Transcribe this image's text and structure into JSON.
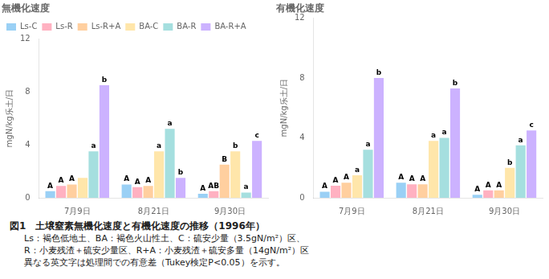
{
  "chart_data": [
    {
      "type": "bar",
      "title": "無機化速度",
      "y_label": "mgN/kg乐土/日",
      "categories": [
        "7月9日",
        "8月21日",
        "9月30日"
      ],
      "series": [
        {
          "name": "Ls-C",
          "values": [
            0.5,
            1.0,
            0.3
          ],
          "annotations": [
            "A",
            "A",
            "A"
          ]
        },
        {
          "name": "Ls-R",
          "values": [
            0.9,
            0.8,
            0.5
          ],
          "annotations": [
            "A",
            "A",
            "AB"
          ]
        },
        {
          "name": "Ls-R+A",
          "values": [
            1.0,
            0.9,
            2.5
          ],
          "annotations": [
            "A",
            "A",
            "B"
          ]
        },
        {
          "name": "BA-C",
          "values": [
            1.5,
            3.5,
            3.5
          ],
          "annotations": [
            null,
            "a",
            "b"
          ]
        },
        {
          "name": "BA-R",
          "values": [
            3.5,
            5.2,
            0.4
          ],
          "annotations": [
            "a",
            "a",
            "a"
          ]
        },
        {
          "name": "BA-R+A",
          "values": [
            8.5,
            1.5,
            4.3
          ],
          "annotations": [
            "b",
            "b",
            "c"
          ]
        }
      ],
      "ylim": [
        0,
        12
      ],
      "yticks": [
        0,
        4,
        8,
        12
      ],
      "grid": false,
      "legend": "upper left"
    },
    {
      "type": "bar",
      "title": "有機化速度",
      "y_label": "mgN/kg乐土/日",
      "categories": [
        "7月9日",
        "8月21日",
        "9月30日"
      ],
      "series": [
        {
          "name": "Ls-C",
          "values": [
            0.4,
            1.0,
            0.2
          ],
          "annotations": [
            "A",
            "A",
            "A"
          ]
        },
        {
          "name": "Ls-R",
          "values": [
            0.8,
            0.9,
            0.5
          ],
          "annotations": [
            "A",
            "A",
            "A"
          ]
        },
        {
          "name": "Ls-R+A",
          "values": [
            1.0,
            0.9,
            0.5
          ],
          "annotations": [
            "A",
            "A",
            "A"
          ]
        },
        {
          "name": "BA-C",
          "values": [
            1.5,
            3.8,
            2.0
          ],
          "annotations": [
            "a",
            "a",
            "b"
          ]
        },
        {
          "name": "BA-R",
          "values": [
            3.2,
            4.0,
            3.5
          ],
          "annotations": [
            "a",
            "a",
            "a"
          ]
        },
        {
          "name": "BA-R+A",
          "values": [
            8.0,
            7.3,
            4.5
          ],
          "annotations": [
            "b",
            "b",
            "c"
          ]
        }
      ],
      "ylim": [
        0,
        12
      ],
      "yticks": [
        0,
        4,
        8,
        12
      ],
      "grid": false
    }
  ],
  "caption": [
    "図1　土壌窒素無機化速度と有機化速度の推移（1996年）",
    "Ls：褐色低地土、BA：褐色火山性土、C：硫安少量（3.5gN/m²）区、",
    "R：小麦残渣＋硫安少量区、R+A：小麦残渣＋硫安多量（14gN/m²）区",
    "異なる英文字は処理間での有意差（Tukey検定P<0.05）を示す。"
  ]
}
